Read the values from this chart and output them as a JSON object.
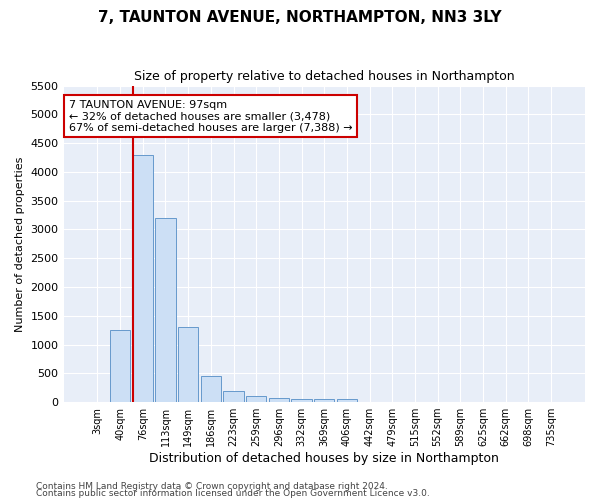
{
  "title": "7, TAUNTON AVENUE, NORTHAMPTON, NN3 3LY",
  "subtitle": "Size of property relative to detached houses in Northampton",
  "xlabel": "Distribution of detached houses by size in Northampton",
  "ylabel": "Number of detached properties",
  "categories": [
    "3sqm",
    "40sqm",
    "76sqm",
    "113sqm",
    "149sqm",
    "186sqm",
    "223sqm",
    "259sqm",
    "296sqm",
    "332sqm",
    "369sqm",
    "406sqm",
    "442sqm",
    "479sqm",
    "515sqm",
    "552sqm",
    "589sqm",
    "625sqm",
    "662sqm",
    "698sqm",
    "735sqm"
  ],
  "values": [
    0,
    1250,
    4300,
    3200,
    1300,
    450,
    200,
    100,
    75,
    50,
    50,
    50,
    0,
    0,
    0,
    0,
    0,
    0,
    0,
    0,
    0
  ],
  "bar_color": "#ccdff5",
  "bar_edge_color": "#6699cc",
  "background_color": "#e8eef8",
  "ylim": [
    0,
    5500
  ],
  "yticks": [
    0,
    500,
    1000,
    1500,
    2000,
    2500,
    3000,
    3500,
    4000,
    4500,
    5000,
    5500
  ],
  "annotation_text": "7 TAUNTON AVENUE: 97sqm\n← 32% of detached houses are smaller (3,478)\n67% of semi-detached houses are larger (7,388) →",
  "annotation_box_color": "#ffffff",
  "annotation_box_edge": "#cc0000",
  "property_bar_index": 2,
  "property_line_color": "#cc0000",
  "footer_line1": "Contains HM Land Registry data © Crown copyright and database right 2024.",
  "footer_line2": "Contains public sector information licensed under the Open Government Licence v3.0."
}
